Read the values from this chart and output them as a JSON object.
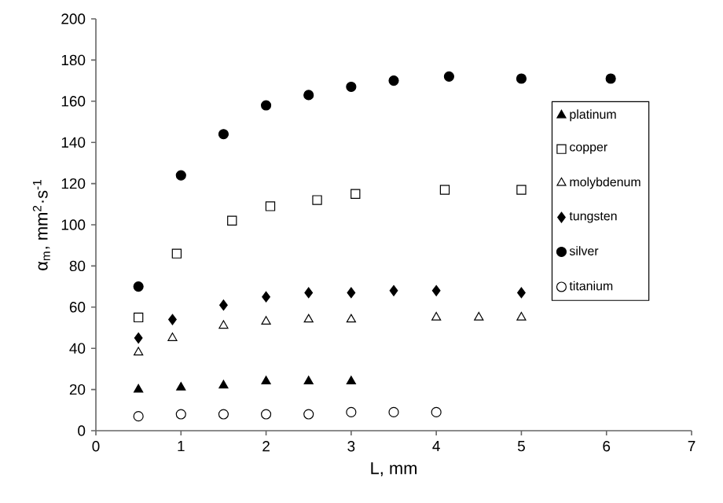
{
  "chart_data": {
    "type": "scatter",
    "xlabel": "L, mm",
    "ylabel": "α$_{m}$, mm$^{2}$·s$^{-1}$",
    "xlim": [
      0,
      7
    ],
    "xticks": [
      0,
      1,
      2,
      3,
      4,
      5,
      6,
      7
    ],
    "ylim": [
      0,
      200
    ],
    "yticks": [
      0,
      20,
      40,
      60,
      80,
      100,
      120,
      140,
      160,
      180,
      200
    ],
    "grid": false,
    "legend": "right",
    "series": [
      {
        "name": "platinum",
        "color": "#000000",
        "marker": "triangle",
        "x": [
          0.5,
          1,
          1.5,
          2,
          2.5,
          3
        ],
        "values": [
          20,
          21,
          22,
          24,
          24,
          24
        ]
      },
      {
        "name": "copper",
        "color": "#ffffff",
        "marker": "square",
        "x": [
          0.5,
          0.95,
          1.6,
          2.05,
          2.6,
          3.05,
          4.1,
          5
        ],
        "values": [
          55,
          86,
          102,
          109,
          112,
          115,
          117,
          117
        ]
      },
      {
        "name": "molybdenum",
        "color": "#ffffff",
        "marker": "triangle",
        "x": [
          0.5,
          0.9,
          1.5,
          2,
          2.5,
          3,
          4,
          4.5,
          5
        ],
        "values": [
          38,
          45,
          51,
          53,
          54,
          54,
          55,
          55,
          55
        ]
      },
      {
        "name": "tungsten",
        "color": "#000000",
        "marker": "diamond",
        "x": [
          0.5,
          0.9,
          1.5,
          2,
          2.5,
          3,
          3.5,
          4,
          5
        ],
        "values": [
          45,
          54,
          61,
          65,
          67,
          67,
          68,
          68,
          67
        ]
      },
      {
        "name": "silver",
        "color": "#000000",
        "marker": "circle",
        "x": [
          0.5,
          1,
          1.5,
          2,
          2.5,
          3,
          3.5,
          4.15,
          5,
          6.05
        ],
        "values": [
          70,
          124,
          144,
          158,
          163,
          167,
          170,
          172,
          171,
          171
        ]
      },
      {
        "name": "titanium",
        "color": "#ffffff",
        "marker": "circle",
        "x": [
          0.5,
          1,
          1.5,
          2,
          2.5,
          3,
          3.5,
          4
        ],
        "values": [
          7,
          8,
          8,
          8,
          8,
          9,
          9,
          9
        ]
      }
    ]
  }
}
